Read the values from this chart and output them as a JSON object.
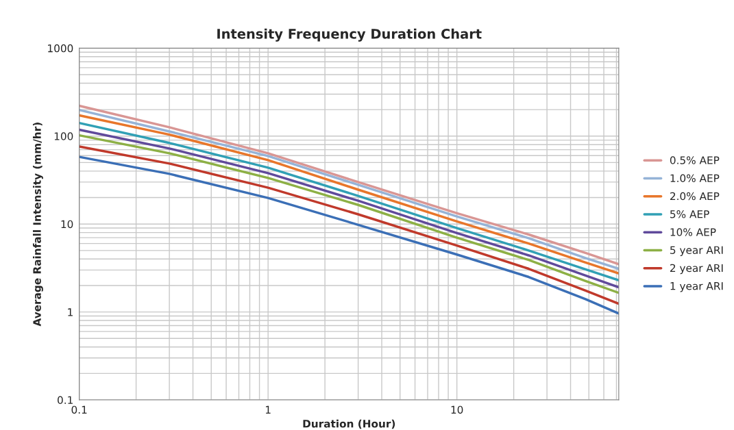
{
  "chart_data": {
    "type": "line",
    "title": "Intensity Frequency Duration Chart",
    "xlabel": "Duration (Hour)",
    "ylabel": "Average Rainfall Intensity (mm/hr)",
    "log": "xy",
    "xlim": [
      0.1,
      72
    ],
    "ylim": [
      0.1,
      1000
    ],
    "xticks": [
      0.1,
      1,
      10
    ],
    "yticks": [
      0.1,
      1,
      10,
      100,
      1000
    ],
    "grid": true,
    "legend": "right",
    "marker": "none",
    "line_style": "solid",
    "x": [
      0.1,
      0.3,
      1,
      3,
      10,
      24,
      48,
      72
    ],
    "series": [
      {
        "name": "0.5% AEP",
        "color": "#d99694",
        "values": [
          221,
          126,
          63.8,
          30.0,
          13.3,
          7.6,
          4.7,
          3.5
        ]
      },
      {
        "name": "1.0% AEP",
        "color": "#95b3d7",
        "values": [
          198,
          113,
          59.3,
          27.9,
          12.2,
          6.9,
          4.1,
          3.1
        ]
      },
      {
        "name": "2.0% AEP",
        "color": "#e8762b",
        "values": [
          172,
          104,
          53.3,
          24.6,
          10.7,
          6.0,
          3.65,
          2.74
        ]
      },
      {
        "name": "5% AEP",
        "color": "#31a0b5",
        "values": [
          141,
          83.5,
          43.7,
          20.9,
          9.0,
          5.0,
          3.05,
          2.29
        ]
      },
      {
        "name": "10% AEP",
        "color": "#604a9b",
        "values": [
          118,
          72.3,
          37.9,
          18.4,
          7.9,
          4.4,
          2.6,
          1.91
        ]
      },
      {
        "name": "5 year ARI",
        "color": "#8db045",
        "values": [
          102,
          63.8,
          33.4,
          16.5,
          7.0,
          3.9,
          2.25,
          1.65
        ]
      },
      {
        "name": "2 year ARI",
        "color": "#c0392b",
        "values": [
          76,
          48.7,
          25.9,
          12.9,
          5.7,
          3.1,
          1.75,
          1.24
        ]
      },
      {
        "name": "1 year ARI",
        "color": "#3b6fb6",
        "values": [
          58,
          37.2,
          19.8,
          9.8,
          4.5,
          2.5,
          1.4,
          0.96
        ]
      }
    ]
  }
}
